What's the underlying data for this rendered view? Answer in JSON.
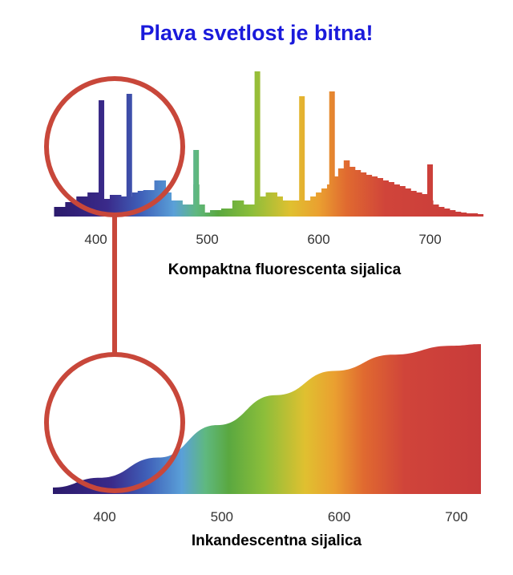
{
  "title": "Plava svetlost je bitna!",
  "colors": {
    "title": "#1a1adb",
    "circle": "#c8473a",
    "spectrum": [
      "#2b1a6b",
      "#3a2a8a",
      "#3f5fb8",
      "#5aa0d8",
      "#5fb880",
      "#5aa840",
      "#8cbe3a",
      "#e0c030",
      "#eaa030",
      "#e06a30",
      "#d0443a",
      "#c83b3a"
    ]
  },
  "chart_data": [
    {
      "type": "bar",
      "label": "Kompaktna fluorescenta sijalica",
      "xticks": [
        400,
        500,
        600,
        700
      ],
      "xlim": [
        360,
        750
      ],
      "bar_width_nm": 5,
      "values": [
        [
          365,
          12
        ],
        [
          370,
          12
        ],
        [
          375,
          18
        ],
        [
          380,
          18
        ],
        [
          385,
          25
        ],
        [
          390,
          25
        ],
        [
          395,
          30
        ],
        [
          400,
          30
        ],
        [
          405,
          22
        ],
        [
          410,
          22
        ],
        [
          415,
          27
        ],
        [
          420,
          27
        ],
        [
          425,
          25
        ],
        [
          430,
          25
        ],
        [
          435,
          30
        ],
        [
          440,
          32
        ],
        [
          445,
          33
        ],
        [
          450,
          33
        ],
        [
          455,
          45
        ],
        [
          460,
          45
        ],
        [
          465,
          30
        ],
        [
          470,
          20
        ],
        [
          475,
          20
        ],
        [
          480,
          15
        ],
        [
          485,
          15
        ],
        [
          490,
          40
        ],
        [
          495,
          15
        ],
        [
          500,
          5
        ],
        [
          505,
          8
        ],
        [
          510,
          8
        ],
        [
          515,
          10
        ],
        [
          520,
          10
        ],
        [
          525,
          20
        ],
        [
          530,
          20
        ],
        [
          535,
          15
        ],
        [
          540,
          15
        ],
        [
          545,
          20
        ],
        [
          550,
          25
        ],
        [
          555,
          30
        ],
        [
          560,
          30
        ],
        [
          565,
          25
        ],
        [
          570,
          20
        ],
        [
          575,
          20
        ],
        [
          580,
          20
        ],
        [
          585,
          20
        ],
        [
          590,
          20
        ],
        [
          595,
          25
        ],
        [
          600,
          30
        ],
        [
          605,
          35
        ],
        [
          610,
          40
        ],
        [
          615,
          50
        ],
        [
          620,
          60
        ],
        [
          625,
          70
        ],
        [
          630,
          62
        ],
        [
          635,
          58
        ],
        [
          640,
          55
        ],
        [
          645,
          52
        ],
        [
          650,
          50
        ],
        [
          655,
          48
        ],
        [
          660,
          45
        ],
        [
          665,
          43
        ],
        [
          670,
          40
        ],
        [
          675,
          38
        ],
        [
          680,
          35
        ],
        [
          685,
          32
        ],
        [
          690,
          30
        ],
        [
          695,
          28
        ],
        [
          700,
          20
        ],
        [
          705,
          15
        ],
        [
          710,
          12
        ],
        [
          715,
          10
        ],
        [
          720,
          8
        ],
        [
          725,
          6
        ],
        [
          730,
          5
        ],
        [
          735,
          4
        ],
        [
          740,
          4
        ],
        [
          745,
          3
        ]
      ],
      "peaks": [
        [
          405,
          145
        ],
        [
          430,
          153
        ],
        [
          490,
          83
        ],
        [
          545,
          181
        ],
        [
          585,
          150
        ],
        [
          612,
          156
        ],
        [
          700,
          65
        ]
      ]
    },
    {
      "type": "area",
      "label": "Inkandescentna sijalica",
      "xticks": [
        400,
        500,
        600,
        700
      ],
      "xlim": [
        360,
        725
      ],
      "x": [
        360,
        400,
        450,
        500,
        550,
        600,
        650,
        700,
        725
      ],
      "y": [
        8,
        20,
        45,
        85,
        122,
        152,
        172,
        183,
        185
      ],
      "ylim": [
        0,
        200
      ]
    }
  ]
}
